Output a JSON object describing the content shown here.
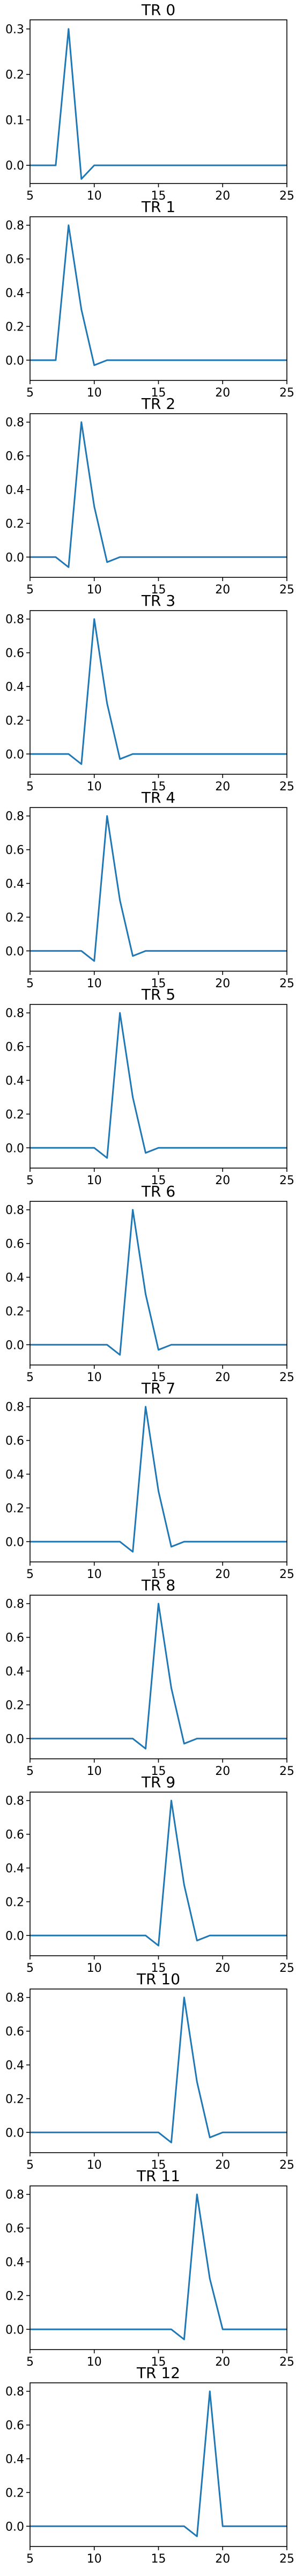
{
  "colors": {
    "line": "#1f77b4",
    "axes": "#000000",
    "background": "#ffffff"
  },
  "chart_data": [
    {
      "type": "line",
      "title": "TR 0",
      "xlim": [
        5,
        25
      ],
      "ylim": [
        -0.04,
        0.32
      ],
      "x_ticks": [
        5,
        10,
        15,
        20,
        25
      ],
      "y_ticks": [
        0.0,
        0.1,
        0.2,
        0.3
      ],
      "y_tick_labels": [
        "0.0",
        "0.1",
        "0.2",
        "0.3"
      ],
      "series": [
        {
          "x": [
            5,
            6,
            7,
            8,
            9,
            10,
            11,
            12,
            13,
            14,
            15,
            16,
            17,
            18,
            19,
            20,
            21,
            22,
            23,
            24,
            25
          ],
          "y": [
            0,
            0,
            0,
            0.3,
            -0.03,
            0,
            0,
            0,
            0,
            0,
            0,
            0,
            0,
            0,
            0,
            0,
            0,
            0,
            0,
            0,
            0
          ]
        }
      ]
    },
    {
      "type": "line",
      "title": "TR 1",
      "xlim": [
        5,
        25
      ],
      "ylim": [
        -0.12,
        0.85
      ],
      "x_ticks": [
        5,
        10,
        15,
        20,
        25
      ],
      "y_ticks": [
        0.0,
        0.2,
        0.4,
        0.6,
        0.8
      ],
      "y_tick_labels": [
        "0.0",
        "0.2",
        "0.4",
        "0.6",
        "0.8"
      ],
      "series": [
        {
          "x": [
            5,
            6,
            7,
            8,
            9,
            10,
            11,
            12,
            13,
            14,
            15,
            16,
            17,
            18,
            19,
            20,
            21,
            22,
            23,
            24,
            25
          ],
          "y": [
            0,
            0,
            0,
            0.8,
            0.3,
            -0.03,
            0,
            0,
            0,
            0,
            0,
            0,
            0,
            0,
            0,
            0,
            0,
            0,
            0,
            0,
            0
          ]
        }
      ]
    },
    {
      "type": "line",
      "title": "TR 2",
      "xlim": [
        5,
        25
      ],
      "ylim": [
        -0.12,
        0.85
      ],
      "x_ticks": [
        5,
        10,
        15,
        20,
        25
      ],
      "y_ticks": [
        0.0,
        0.2,
        0.4,
        0.6,
        0.8
      ],
      "y_tick_labels": [
        "0.0",
        "0.2",
        "0.4",
        "0.6",
        "0.8"
      ],
      "series": [
        {
          "x": [
            5,
            6,
            7,
            8,
            9,
            10,
            11,
            12,
            13,
            14,
            15,
            16,
            17,
            18,
            19,
            20,
            21,
            22,
            23,
            24,
            25
          ],
          "y": [
            0,
            0,
            0,
            -0.06,
            0.8,
            0.3,
            -0.03,
            0,
            0,
            0,
            0,
            0,
            0,
            0,
            0,
            0,
            0,
            0,
            0,
            0,
            0
          ]
        }
      ]
    },
    {
      "type": "line",
      "title": "TR 3",
      "xlim": [
        5,
        25
      ],
      "ylim": [
        -0.12,
        0.85
      ],
      "x_ticks": [
        5,
        10,
        15,
        20,
        25
      ],
      "y_ticks": [
        0.0,
        0.2,
        0.4,
        0.6,
        0.8
      ],
      "y_tick_labels": [
        "0.0",
        "0.2",
        "0.4",
        "0.6",
        "0.8"
      ],
      "series": [
        {
          "x": [
            5,
            6,
            7,
            8,
            9,
            10,
            11,
            12,
            13,
            14,
            15,
            16,
            17,
            18,
            19,
            20,
            21,
            22,
            23,
            24,
            25
          ],
          "y": [
            0,
            0,
            0,
            0,
            -0.06,
            0.8,
            0.3,
            -0.03,
            0,
            0,
            0,
            0,
            0,
            0,
            0,
            0,
            0,
            0,
            0,
            0,
            0
          ]
        }
      ]
    },
    {
      "type": "line",
      "title": "TR 4",
      "xlim": [
        5,
        25
      ],
      "ylim": [
        -0.12,
        0.85
      ],
      "x_ticks": [
        5,
        10,
        15,
        20,
        25
      ],
      "y_ticks": [
        0.0,
        0.2,
        0.4,
        0.6,
        0.8
      ],
      "y_tick_labels": [
        "0.0",
        "0.2",
        "0.4",
        "0.6",
        "0.8"
      ],
      "series": [
        {
          "x": [
            5,
            6,
            7,
            8,
            9,
            10,
            11,
            12,
            13,
            14,
            15,
            16,
            17,
            18,
            19,
            20,
            21,
            22,
            23,
            24,
            25
          ],
          "y": [
            0,
            0,
            0,
            0,
            0,
            -0.06,
            0.8,
            0.3,
            -0.03,
            0,
            0,
            0,
            0,
            0,
            0,
            0,
            0,
            0,
            0,
            0,
            0
          ]
        }
      ]
    },
    {
      "type": "line",
      "title": "TR 5",
      "xlim": [
        5,
        25
      ],
      "ylim": [
        -0.12,
        0.85
      ],
      "x_ticks": [
        5,
        10,
        15,
        20,
        25
      ],
      "y_ticks": [
        0.0,
        0.2,
        0.4,
        0.6,
        0.8
      ],
      "y_tick_labels": [
        "0.0",
        "0.2",
        "0.4",
        "0.6",
        "0.8"
      ],
      "series": [
        {
          "x": [
            5,
            6,
            7,
            8,
            9,
            10,
            11,
            12,
            13,
            14,
            15,
            16,
            17,
            18,
            19,
            20,
            21,
            22,
            23,
            24,
            25
          ],
          "y": [
            0,
            0,
            0,
            0,
            0,
            0,
            -0.06,
            0.8,
            0.3,
            -0.03,
            0,
            0,
            0,
            0,
            0,
            0,
            0,
            0,
            0,
            0,
            0
          ]
        }
      ]
    },
    {
      "type": "line",
      "title": "TR 6",
      "xlim": [
        5,
        25
      ],
      "ylim": [
        -0.12,
        0.85
      ],
      "x_ticks": [
        5,
        10,
        15,
        20,
        25
      ],
      "y_ticks": [
        0.0,
        0.2,
        0.4,
        0.6,
        0.8
      ],
      "y_tick_labels": [
        "0.0",
        "0.2",
        "0.4",
        "0.6",
        "0.8"
      ],
      "series": [
        {
          "x": [
            5,
            6,
            7,
            8,
            9,
            10,
            11,
            12,
            13,
            14,
            15,
            16,
            17,
            18,
            19,
            20,
            21,
            22,
            23,
            24,
            25
          ],
          "y": [
            0,
            0,
            0,
            0,
            0,
            0,
            0,
            -0.06,
            0.8,
            0.3,
            -0.03,
            0,
            0,
            0,
            0,
            0,
            0,
            0,
            0,
            0,
            0
          ]
        }
      ]
    },
    {
      "type": "line",
      "title": "TR 7",
      "xlim": [
        5,
        25
      ],
      "ylim": [
        -0.12,
        0.85
      ],
      "x_ticks": [
        5,
        10,
        15,
        20,
        25
      ],
      "y_ticks": [
        0.0,
        0.2,
        0.4,
        0.6,
        0.8
      ],
      "y_tick_labels": [
        "0.0",
        "0.2",
        "0.4",
        "0.6",
        "0.8"
      ],
      "series": [
        {
          "x": [
            5,
            6,
            7,
            8,
            9,
            10,
            11,
            12,
            13,
            14,
            15,
            16,
            17,
            18,
            19,
            20,
            21,
            22,
            23,
            24,
            25
          ],
          "y": [
            0,
            0,
            0,
            0,
            0,
            0,
            0,
            0,
            -0.06,
            0.8,
            0.3,
            -0.03,
            0,
            0,
            0,
            0,
            0,
            0,
            0,
            0,
            0
          ]
        }
      ]
    },
    {
      "type": "line",
      "title": "TR 8",
      "xlim": [
        5,
        25
      ],
      "ylim": [
        -0.12,
        0.85
      ],
      "x_ticks": [
        5,
        10,
        15,
        20,
        25
      ],
      "y_ticks": [
        0.0,
        0.2,
        0.4,
        0.6,
        0.8
      ],
      "y_tick_labels": [
        "0.0",
        "0.2",
        "0.4",
        "0.6",
        "0.8"
      ],
      "series": [
        {
          "x": [
            5,
            6,
            7,
            8,
            9,
            10,
            11,
            12,
            13,
            14,
            15,
            16,
            17,
            18,
            19,
            20,
            21,
            22,
            23,
            24,
            25
          ],
          "y": [
            0,
            0,
            0,
            0,
            0,
            0,
            0,
            0,
            0,
            -0.06,
            0.8,
            0.3,
            -0.03,
            0,
            0,
            0,
            0,
            0,
            0,
            0,
            0
          ]
        }
      ]
    },
    {
      "type": "line",
      "title": "TR 9",
      "xlim": [
        5,
        25
      ],
      "ylim": [
        -0.12,
        0.85
      ],
      "x_ticks": [
        5,
        10,
        15,
        20,
        25
      ],
      "y_ticks": [
        0.0,
        0.2,
        0.4,
        0.6,
        0.8
      ],
      "y_tick_labels": [
        "0.0",
        "0.2",
        "0.4",
        "0.6",
        "0.8"
      ],
      "series": [
        {
          "x": [
            5,
            6,
            7,
            8,
            9,
            10,
            11,
            12,
            13,
            14,
            15,
            16,
            17,
            18,
            19,
            20,
            21,
            22,
            23,
            24,
            25
          ],
          "y": [
            0,
            0,
            0,
            0,
            0,
            0,
            0,
            0,
            0,
            0,
            -0.06,
            0.8,
            0.3,
            -0.03,
            0,
            0,
            0,
            0,
            0,
            0,
            0
          ]
        }
      ]
    },
    {
      "type": "line",
      "title": "TR 10",
      "xlim": [
        5,
        25
      ],
      "ylim": [
        -0.12,
        0.85
      ],
      "x_ticks": [
        5,
        10,
        15,
        20,
        25
      ],
      "y_ticks": [
        0.0,
        0.2,
        0.4,
        0.6,
        0.8
      ],
      "y_tick_labels": [
        "0.0",
        "0.2",
        "0.4",
        "0.6",
        "0.8"
      ],
      "series": [
        {
          "x": [
            5,
            6,
            7,
            8,
            9,
            10,
            11,
            12,
            13,
            14,
            15,
            16,
            17,
            18,
            19,
            20,
            21,
            22,
            23,
            24,
            25
          ],
          "y": [
            0,
            0,
            0,
            0,
            0,
            0,
            0,
            0,
            0,
            0,
            0,
            -0.06,
            0.8,
            0.3,
            -0.03,
            0,
            0,
            0,
            0,
            0,
            0
          ]
        }
      ]
    },
    {
      "type": "line",
      "title": "TR 11",
      "xlim": [
        5,
        25
      ],
      "ylim": [
        -0.12,
        0.85
      ],
      "x_ticks": [
        5,
        10,
        15,
        20,
        25
      ],
      "y_ticks": [
        0.0,
        0.2,
        0.4,
        0.6,
        0.8
      ],
      "y_tick_labels": [
        "0.0",
        "0.2",
        "0.4",
        "0.6",
        "0.8"
      ],
      "series": [
        {
          "x": [
            5,
            6,
            7,
            8,
            9,
            10,
            11,
            12,
            13,
            14,
            15,
            16,
            17,
            18,
            19,
            20,
            21,
            22,
            23,
            24,
            25
          ],
          "y": [
            0,
            0,
            0,
            0,
            0,
            0,
            0,
            0,
            0,
            0,
            0,
            0,
            -0.06,
            0.8,
            0.3,
            0,
            0,
            0,
            0,
            0,
            0
          ]
        }
      ]
    },
    {
      "type": "line",
      "title": "TR 12",
      "xlim": [
        5,
        25
      ],
      "ylim": [
        -0.12,
        0.85
      ],
      "x_ticks": [
        5,
        10,
        15,
        20,
        25
      ],
      "y_ticks": [
        0.0,
        0.2,
        0.4,
        0.6,
        0.8
      ],
      "y_tick_labels": [
        "0.0",
        "0.2",
        "0.4",
        "0.6",
        "0.8"
      ],
      "series": [
        {
          "x": [
            5,
            6,
            7,
            8,
            9,
            10,
            11,
            12,
            13,
            14,
            15,
            16,
            17,
            18,
            19,
            20,
            21,
            22,
            23,
            24,
            25
          ],
          "y": [
            0,
            0,
            0,
            0,
            0,
            0,
            0,
            0,
            0,
            0,
            0,
            0,
            0,
            -0.06,
            0.8,
            0,
            0,
            0,
            0,
            0,
            0
          ]
        }
      ]
    }
  ]
}
